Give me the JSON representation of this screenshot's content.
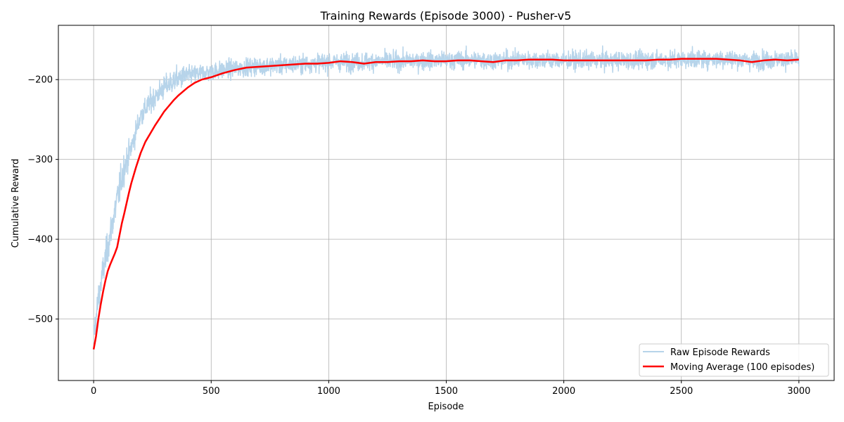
{
  "chart_data": {
    "type": "line",
    "title": "Training Rewards (Episode 3000) - Pusher-v5",
    "xlabel": "Episode",
    "ylabel": "Cumulative Reward",
    "xlim": [
      -150,
      3150
    ],
    "ylim": [
      -577,
      -132
    ],
    "xticks": [
      0,
      500,
      1000,
      1500,
      2000,
      2500,
      3000
    ],
    "xtick_labels": [
      "0",
      "500",
      "1000",
      "1500",
      "2000",
      "2500",
      "3000"
    ],
    "yticks": [
      -500,
      -400,
      -300,
      -200
    ],
    "ytick_labels": [
      "−500",
      "−400",
      "−300",
      "−200"
    ],
    "grid": true,
    "legend_position": "bottom-right",
    "series": [
      {
        "name": "Raw Episode Rewards",
        "color": "#b7d4ea",
        "style": "noisy",
        "x": [
          0,
          10,
          20,
          40,
          60,
          80,
          100,
          130,
          160,
          200,
          250,
          300,
          350,
          400,
          500,
          600,
          700,
          800,
          900,
          1000,
          1100,
          1200,
          1300,
          1400,
          1500,
          1600,
          1700,
          1800,
          1900,
          2000,
          2100,
          2200,
          2300,
          2400,
          2500,
          2600,
          2700,
          2800,
          2900,
          3000
        ],
        "y": [
          -520,
          -500,
          -475,
          -440,
          -410,
          -380,
          -350,
          -310,
          -285,
          -245,
          -225,
          -210,
          -200,
          -195,
          -190,
          -186,
          -183,
          -182,
          -180,
          -178,
          -178,
          -177,
          -177,
          -176,
          -176,
          -175,
          -176,
          -175,
          -175,
          -176,
          -176,
          -176,
          -176,
          -175,
          -175,
          -174,
          -174,
          -176,
          -175,
          -175
        ]
      },
      {
        "name": "Moving Average (100 episodes)",
        "color": "#ff0000",
        "x": [
          0,
          10,
          20,
          30,
          40,
          50,
          60,
          70,
          80,
          90,
          100,
          110,
          120,
          130,
          140,
          150,
          160,
          180,
          200,
          220,
          240,
          260,
          280,
          300,
          320,
          340,
          360,
          380,
          400,
          430,
          460,
          500,
          550,
          600,
          650,
          700,
          750,
          800,
          850,
          900,
          950,
          1000,
          1050,
          1100,
          1150,
          1200,
          1250,
          1300,
          1350,
          1400,
          1450,
          1500,
          1550,
          1600,
          1650,
          1700,
          1750,
          1800,
          1850,
          1900,
          1950,
          2000,
          2050,
          2100,
          2150,
          2200,
          2250,
          2300,
          2350,
          2400,
          2450,
          2500,
          2550,
          2600,
          2650,
          2700,
          2750,
          2800,
          2850,
          2900,
          2950,
          3000
        ],
        "y": [
          -538,
          -522,
          -500,
          -482,
          -466,
          -452,
          -440,
          -432,
          -425,
          -418,
          -410,
          -395,
          -380,
          -368,
          -355,
          -342,
          -330,
          -310,
          -292,
          -278,
          -268,
          -258,
          -249,
          -240,
          -233,
          -226,
          -220,
          -215,
          -210,
          -204,
          -200,
          -197,
          -192,
          -188,
          -185,
          -184,
          -183,
          -182,
          -181,
          -180,
          -180,
          -179,
          -177,
          -178,
          -180,
          -178,
          -178,
          -177,
          -177,
          -176,
          -177,
          -177,
          -176,
          -176,
          -177,
          -178,
          -176,
          -176,
          -175,
          -175,
          -175,
          -176,
          -176,
          -176,
          -176,
          -176,
          -176,
          -176,
          -176,
          -175,
          -175,
          -174,
          -174,
          -174,
          -174,
          -175,
          -176,
          -178,
          -176,
          -175,
          -176,
          -175
        ]
      }
    ]
  }
}
